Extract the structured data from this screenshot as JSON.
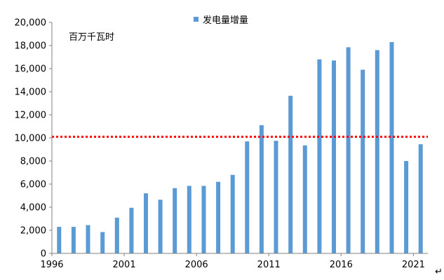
{
  "chart_data": {
    "type": "bar",
    "unit_label": "百万千瓦时",
    "series": [
      {
        "name": "发电量增量",
        "color": "#5b9bd5",
        "x": [
          1996,
          1997,
          1998,
          1999,
          2000,
          2001,
          2002,
          2003,
          2004,
          2005,
          2006,
          2007,
          2008,
          2009,
          2010,
          2011,
          2012,
          2013,
          2014,
          2015,
          2016,
          2017,
          2018,
          2019,
          2020,
          2021
        ],
        "values": [
          2300,
          2300,
          2450,
          1850,
          3100,
          3950,
          5200,
          4650,
          5650,
          5850,
          5850,
          6200,
          6800,
          9700,
          11100,
          9750,
          13650,
          9350,
          16800,
          16700,
          17850,
          15900,
          17600,
          18300,
          8000,
          9450
        ]
      }
    ],
    "reference_line": {
      "value": 10100,
      "color": "#ff0000",
      "style": "dotted"
    },
    "xtick_labels": [
      "1996",
      "2001",
      "2006",
      "2011",
      "2016",
      "2021"
    ],
    "ylim": [
      0,
      20000
    ],
    "ytick_labels": [
      "0",
      "2,000",
      "4,000",
      "6,000",
      "8,000",
      "10,000",
      "12,000",
      "14,000",
      "16,000",
      "18,000",
      "20,000"
    ],
    "grid": false,
    "legend_position": "top-center",
    "return_mark": "↵"
  }
}
